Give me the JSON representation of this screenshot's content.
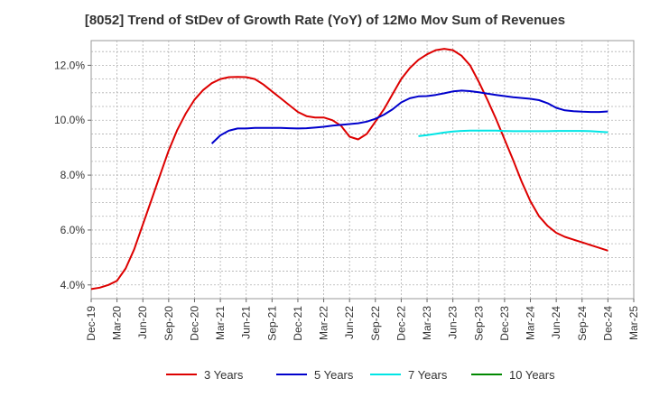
{
  "chart_data": {
    "type": "line",
    "title": "[8052]  Trend of StDev of Growth Rate (YoY) of 12Mo Mov Sum of Revenues",
    "xlabel": "",
    "ylabel": "",
    "ylim": [
      3.5,
      12.9
    ],
    "y_ticks": [
      4.0,
      6.0,
      8.0,
      10.0,
      12.0
    ],
    "y_tick_labels": [
      "4.0%",
      "6.0%",
      "8.0%",
      "10.0%",
      "12.0%"
    ],
    "x_tick_labels": [
      "Dec-19",
      "Mar-20",
      "Jun-20",
      "Sep-20",
      "Dec-20",
      "Mar-21",
      "Jun-21",
      "Sep-21",
      "Dec-21",
      "Mar-22",
      "Jun-22",
      "Sep-22",
      "Dec-22",
      "Mar-23",
      "Jun-23",
      "Sep-23",
      "Dec-23",
      "Mar-24",
      "Jun-24",
      "Sep-24",
      "Dec-24",
      "Mar-25"
    ],
    "x_range_months": [
      0,
      63
    ],
    "grid": true,
    "legend_position": "bottom",
    "series": [
      {
        "name": "3 Years",
        "color": "#dd0000",
        "x": [
          0,
          1,
          2,
          3,
          4,
          5,
          6,
          7,
          8,
          9,
          10,
          11,
          12,
          13,
          14,
          15,
          16,
          17,
          18,
          19,
          20,
          21,
          22,
          23,
          24,
          25,
          26,
          27,
          28,
          29,
          30,
          31,
          32,
          33,
          34,
          35,
          36,
          37,
          38,
          39,
          40,
          41,
          42,
          43,
          44,
          45,
          46,
          47,
          48,
          49,
          50,
          51,
          52,
          53,
          54,
          55,
          56,
          57,
          58,
          59,
          60
        ],
        "values": [
          3.85,
          3.9,
          4.0,
          4.15,
          4.6,
          5.3,
          6.2,
          7.1,
          8.0,
          8.9,
          9.65,
          10.25,
          10.75,
          11.1,
          11.35,
          11.5,
          11.57,
          11.58,
          11.57,
          11.5,
          11.3,
          11.05,
          10.8,
          10.55,
          10.3,
          10.15,
          10.1,
          10.1,
          10.0,
          9.8,
          9.4,
          9.3,
          9.5,
          9.95,
          10.4,
          10.95,
          11.5,
          11.9,
          12.2,
          12.4,
          12.55,
          12.6,
          12.55,
          12.35,
          12.0,
          11.4,
          10.75,
          10.05,
          9.3,
          8.55,
          7.75,
          7.05,
          6.5,
          6.15,
          5.9,
          5.75,
          5.65,
          5.55,
          5.45,
          5.35,
          5.25
        ]
      },
      {
        "name": "5 Years",
        "color": "#0000cc",
        "x": [
          14,
          15,
          16,
          17,
          18,
          19,
          20,
          21,
          22,
          23,
          24,
          25,
          26,
          27,
          28,
          29,
          30,
          31,
          32,
          33,
          34,
          35,
          36,
          37,
          38,
          39,
          40,
          41,
          42,
          43,
          44,
          45,
          46,
          47,
          48,
          49,
          50,
          51,
          52,
          53,
          54,
          55,
          56,
          57,
          58,
          59,
          60
        ],
        "values": [
          9.15,
          9.45,
          9.62,
          9.7,
          9.7,
          9.72,
          9.72,
          9.72,
          9.72,
          9.71,
          9.7,
          9.71,
          9.73,
          9.76,
          9.8,
          9.83,
          9.86,
          9.89,
          9.95,
          10.05,
          10.2,
          10.4,
          10.65,
          10.8,
          10.87,
          10.88,
          10.92,
          10.98,
          11.05,
          11.08,
          11.06,
          11.02,
          10.97,
          10.92,
          10.88,
          10.84,
          10.81,
          10.78,
          10.73,
          10.62,
          10.45,
          10.36,
          10.33,
          10.31,
          10.3,
          10.3,
          10.32
        ]
      },
      {
        "name": "7 Years",
        "color": "#00e5e5",
        "x": [
          38,
          39,
          40,
          41,
          42,
          43,
          44,
          45,
          46,
          47,
          48,
          49,
          50,
          51,
          52,
          53,
          54,
          55,
          56,
          57,
          58,
          59,
          60
        ],
        "values": [
          9.42,
          9.46,
          9.5,
          9.55,
          9.59,
          9.61,
          9.62,
          9.62,
          9.62,
          9.62,
          9.61,
          9.6,
          9.6,
          9.6,
          9.6,
          9.6,
          9.61,
          9.61,
          9.61,
          9.61,
          9.6,
          9.58,
          9.56
        ]
      },
      {
        "name": "10 Years",
        "color": "#008800",
        "x": [],
        "values": []
      }
    ]
  }
}
